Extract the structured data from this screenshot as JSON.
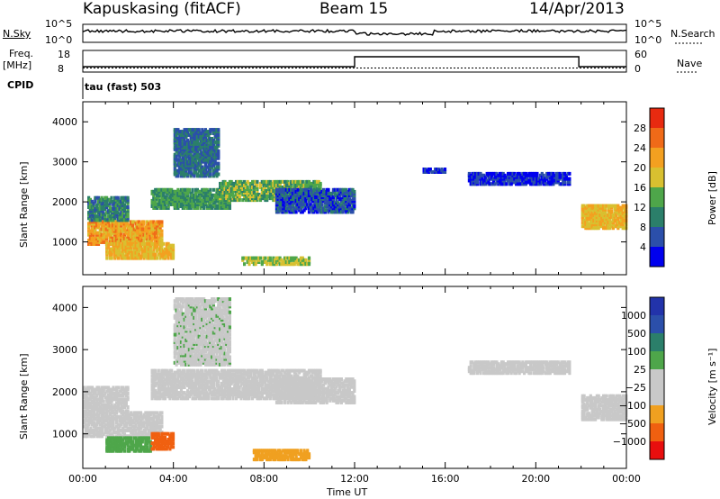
{
  "header": {
    "station": "Kapuskasing (fitACF)",
    "beam": "Beam 15",
    "date": "14/Apr/2013"
  },
  "summary_panels": {
    "nsky_label": "N.Sky",
    "nsky_ticks": [
      "10^5",
      "10^0"
    ],
    "nsearch_label": "N.Search",
    "nsearch_ticks": [
      "10^5",
      "10^0"
    ],
    "freq_label": "Freq.",
    "freq_unit": "[MHz]",
    "freq_ticks": [
      "18",
      "8"
    ],
    "nave_label": "Nave",
    "nave_ticks": [
      "60",
      "0"
    ],
    "cpid_label": "CPID",
    "cpid_value": "tau (fast) 503"
  },
  "colors": {
    "power_scale": [
      "#0000ee",
      "#2b4faa",
      "#2b7f6a",
      "#4ea64a",
      "#d8c030",
      "#f3a020",
      "#f06a18",
      "#e82a10"
    ],
    "velocity_scale": [
      "#e80e0e",
      "#f06010",
      "#f0a020",
      "#c8c8c8",
      "#c8c8c8",
      "#4ea64a",
      "#2b7f6a",
      "#2b4faa",
      "#2233aa"
    ]
  },
  "chart_data": [
    {
      "type": "heatmap",
      "title": "Power",
      "xlabel": "",
      "ylabel": "Slant Range [km]",
      "x_range": [
        "00:00",
        "24:00"
      ],
      "y_range": [
        180,
        4500
      ],
      "y_ticks": [
        "1000",
        "2000",
        "3000",
        "4000"
      ],
      "colorbar": {
        "label": "Power [dB]",
        "ticks": [
          "4",
          "8",
          "12",
          "16",
          "20",
          "24",
          "28"
        ],
        "range": [
          0,
          30
        ]
      },
      "regions": [
        {
          "t0": 0.2,
          "t1": 3.5,
          "r0": 900,
          "r1": 1500,
          "level": 22
        },
        {
          "t0": 1.0,
          "t1": 4.0,
          "r0": 550,
          "r1": 950,
          "level": 20
        },
        {
          "t0": 0.2,
          "t1": 2.0,
          "r0": 1500,
          "r1": 2100,
          "level": 10
        },
        {
          "t0": 3.0,
          "t1": 6.5,
          "r0": 1800,
          "r1": 2300,
          "level": 12
        },
        {
          "t0": 6.0,
          "t1": 10.5,
          "r0": 2000,
          "r1": 2500,
          "level": 14
        },
        {
          "t0": 4.0,
          "t1": 6.0,
          "r0": 2600,
          "r1": 3800,
          "level": 8
        },
        {
          "t0": 8.5,
          "t1": 12.0,
          "r0": 1700,
          "r1": 2300,
          "level": 6
        },
        {
          "t0": 7.0,
          "t1": 10.0,
          "r0": 400,
          "r1": 600,
          "level": 16
        },
        {
          "t0": 15.0,
          "t1": 16.0,
          "r0": 2700,
          "r1": 2800,
          "level": 4
        },
        {
          "t0": 17.0,
          "t1": 21.5,
          "r0": 2400,
          "r1": 2700,
          "level": 4
        },
        {
          "t0": 22.0,
          "t1": 24.0,
          "r0": 1300,
          "r1": 1900,
          "level": 20
        }
      ]
    },
    {
      "type": "heatmap",
      "title": "Velocity",
      "xlabel": "Time UT",
      "ylabel": "Slant Range [km]",
      "x_range": [
        "00:00",
        "24:00"
      ],
      "x_ticks": [
        "00:00",
        "04:00",
        "08:00",
        "12:00",
        "16:00",
        "20:00",
        "00:00"
      ],
      "y_range": [
        180,
        4500
      ],
      "y_ticks": [
        "1000",
        "2000",
        "3000",
        "4000"
      ],
      "colorbar": {
        "label": "Velocity [m s⁻¹]",
        "ticks": [
          "1000",
          "500",
          "100",
          "25",
          "−25",
          "−100",
          "−500",
          "−1000"
        ]
      },
      "regions": [
        {
          "t0": 0.0,
          "t1": 3.5,
          "r0": 900,
          "r1": 1500,
          "level": 0
        },
        {
          "t0": 1.0,
          "t1": 3.0,
          "r0": 550,
          "r1": 900,
          "level": 60
        },
        {
          "t0": 3.0,
          "t1": 4.0,
          "r0": 600,
          "r1": 1000,
          "level": -300
        },
        {
          "t0": 0.0,
          "t1": 2.0,
          "r0": 1500,
          "r1": 2100,
          "level": 0
        },
        {
          "t0": 3.0,
          "t1": 10.5,
          "r0": 1800,
          "r1": 2500,
          "level": 0
        },
        {
          "t0": 4.0,
          "t1": 6.5,
          "r0": 2600,
          "r1": 4200,
          "level": 10
        },
        {
          "t0": 8.5,
          "t1": 12.0,
          "r0": 1700,
          "r1": 2300,
          "level": 0
        },
        {
          "t0": 7.5,
          "t1": 10.0,
          "r0": 350,
          "r1": 600,
          "level": -80
        },
        {
          "t0": 17.0,
          "t1": 21.5,
          "r0": 2400,
          "r1": 2700,
          "level": 0
        },
        {
          "t0": 22.0,
          "t1": 24.0,
          "r0": 1300,
          "r1": 1900,
          "level": 0
        }
      ]
    }
  ]
}
